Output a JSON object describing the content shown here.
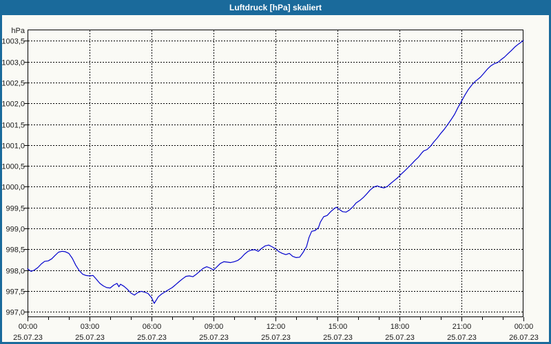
{
  "window": {
    "title": "Luftdruck [hPa] skaliert"
  },
  "colors": {
    "frame": "#1a6a9b",
    "title_text": "#ffffff",
    "content_bg": "#fafaf5",
    "grid": "#000000",
    "axis": "#000000",
    "label_text": "#1a1a1a",
    "line": "#0000cd"
  },
  "chart_data": {
    "type": "line",
    "title": "Luftdruck [hPa] skaliert",
    "ylabel": "hPa",
    "legend": "none",
    "grid": "dashed",
    "xlim_hours": [
      0,
      24
    ],
    "ylim": [
      996.87,
      1003.77
    ],
    "x_minor_tick_hours": 1,
    "x_major_ticks": [
      {
        "hour": 0,
        "time": "00:00",
        "date": "25.07.23"
      },
      {
        "hour": 3,
        "time": "03:00",
        "date": "25.07.23"
      },
      {
        "hour": 6,
        "time": "06:00",
        "date": "25.07.23"
      },
      {
        "hour": 9,
        "time": "09:00",
        "date": "25.07.23"
      },
      {
        "hour": 12,
        "time": "12:00",
        "date": "25.07.23"
      },
      {
        "hour": 15,
        "time": "15:00",
        "date": "25.07.23"
      },
      {
        "hour": 18,
        "time": "18:00",
        "date": "25.07.23"
      },
      {
        "hour": 21,
        "time": "21:00",
        "date": "25.07.23"
      },
      {
        "hour": 24,
        "time": "00:00",
        "date": "26.07.23"
      }
    ],
    "y_ticks": [
      {
        "value": 997.0,
        "label": "997,0"
      },
      {
        "value": 997.5,
        "label": "997,5"
      },
      {
        "value": 998.0,
        "label": "998,0"
      },
      {
        "value": 998.5,
        "label": "998,5"
      },
      {
        "value": 999.0,
        "label": "999,0"
      },
      {
        "value": 999.5,
        "label": "999,5"
      },
      {
        "value": 1000.0,
        "label": "1000,0"
      },
      {
        "value": 1000.5,
        "label": "1000,5"
      },
      {
        "value": 1001.0,
        "label": "1001,0"
      },
      {
        "value": 1001.5,
        "label": "1001,5"
      },
      {
        "value": 1002.0,
        "label": "1002,0"
      },
      {
        "value": 1002.5,
        "label": "1002,5"
      },
      {
        "value": 1003.0,
        "label": "1003,0"
      },
      {
        "value": 1003.5,
        "label": "1003,5"
      }
    ],
    "series": [
      {
        "name": "Luftdruck",
        "color": "#0000cd",
        "points_hour_hpa": [
          [
            0.0,
            998.03
          ],
          [
            0.17,
            997.97
          ],
          [
            0.33,
            998.0
          ],
          [
            0.5,
            998.06
          ],
          [
            0.67,
            998.15
          ],
          [
            0.83,
            998.21
          ],
          [
            1.0,
            998.22
          ],
          [
            1.17,
            998.27
          ],
          [
            1.33,
            998.35
          ],
          [
            1.5,
            998.43
          ],
          [
            1.67,
            998.45
          ],
          [
            1.83,
            998.44
          ],
          [
            2.0,
            998.4
          ],
          [
            2.17,
            998.28
          ],
          [
            2.33,
            998.12
          ],
          [
            2.5,
            997.99
          ],
          [
            2.67,
            997.9
          ],
          [
            2.83,
            997.87
          ],
          [
            3.0,
            997.86
          ],
          [
            3.17,
            997.87
          ],
          [
            3.33,
            997.78
          ],
          [
            3.5,
            997.68
          ],
          [
            3.67,
            997.62
          ],
          [
            3.83,
            997.58
          ],
          [
            4.0,
            997.57
          ],
          [
            4.17,
            997.64
          ],
          [
            4.33,
            997.68
          ],
          [
            4.42,
            997.6
          ],
          [
            4.5,
            997.66
          ],
          [
            4.67,
            997.61
          ],
          [
            4.83,
            997.54
          ],
          [
            5.0,
            997.45
          ],
          [
            5.17,
            997.4
          ],
          [
            5.33,
            997.46
          ],
          [
            5.5,
            997.49
          ],
          [
            5.67,
            997.47
          ],
          [
            5.83,
            997.44
          ],
          [
            6.0,
            997.34
          ],
          [
            6.13,
            997.2
          ],
          [
            6.33,
            997.36
          ],
          [
            6.5,
            997.43
          ],
          [
            6.67,
            997.48
          ],
          [
            6.83,
            997.53
          ],
          [
            7.0,
            997.58
          ],
          [
            7.17,
            997.65
          ],
          [
            7.33,
            997.72
          ],
          [
            7.5,
            997.79
          ],
          [
            7.67,
            997.85
          ],
          [
            7.83,
            997.86
          ],
          [
            8.0,
            997.84
          ],
          [
            8.17,
            997.9
          ],
          [
            8.33,
            997.97
          ],
          [
            8.5,
            998.04
          ],
          [
            8.67,
            998.08
          ],
          [
            8.83,
            998.05
          ],
          [
            9.0,
            998.0
          ],
          [
            9.17,
            998.08
          ],
          [
            9.33,
            998.16
          ],
          [
            9.5,
            998.2
          ],
          [
            9.67,
            998.19
          ],
          [
            9.83,
            998.18
          ],
          [
            10.0,
            998.2
          ],
          [
            10.17,
            998.23
          ],
          [
            10.33,
            998.29
          ],
          [
            10.5,
            998.38
          ],
          [
            10.67,
            998.45
          ],
          [
            10.83,
            998.48
          ],
          [
            11.0,
            998.49
          ],
          [
            11.17,
            998.45
          ],
          [
            11.33,
            998.52
          ],
          [
            11.5,
            998.58
          ],
          [
            11.67,
            998.6
          ],
          [
            11.83,
            998.56
          ],
          [
            12.0,
            998.51
          ],
          [
            12.17,
            998.44
          ],
          [
            12.33,
            998.4
          ],
          [
            12.5,
            998.37
          ],
          [
            12.67,
            998.4
          ],
          [
            12.83,
            998.33
          ],
          [
            13.0,
            998.3
          ],
          [
            13.17,
            998.31
          ],
          [
            13.33,
            998.42
          ],
          [
            13.5,
            998.56
          ],
          [
            13.62,
            998.78
          ],
          [
            13.75,
            998.93
          ],
          [
            13.92,
            998.95
          ],
          [
            14.08,
            999.02
          ],
          [
            14.17,
            999.15
          ],
          [
            14.33,
            999.28
          ],
          [
            14.5,
            999.31
          ],
          [
            14.67,
            999.4
          ],
          [
            14.83,
            999.47
          ],
          [
            14.95,
            999.51
          ],
          [
            15.08,
            999.46
          ],
          [
            15.25,
            999.4
          ],
          [
            15.42,
            999.39
          ],
          [
            15.58,
            999.44
          ],
          [
            15.75,
            999.52
          ],
          [
            15.9,
            999.61
          ],
          [
            16.08,
            999.67
          ],
          [
            16.25,
            999.74
          ],
          [
            16.42,
            999.83
          ],
          [
            16.58,
            999.92
          ],
          [
            16.75,
            999.99
          ],
          [
            16.92,
            1000.02
          ],
          [
            17.08,
            999.99
          ],
          [
            17.25,
            999.97
          ],
          [
            17.42,
            1000.01
          ],
          [
            17.58,
            1000.08
          ],
          [
            17.75,
            1000.15
          ],
          [
            17.92,
            1000.22
          ],
          [
            18.08,
            1000.3
          ],
          [
            18.25,
            1000.38
          ],
          [
            18.42,
            1000.46
          ],
          [
            18.58,
            1000.54
          ],
          [
            18.75,
            1000.63
          ],
          [
            18.92,
            1000.71
          ],
          [
            19.08,
            1000.81
          ],
          [
            19.17,
            1000.86
          ],
          [
            19.33,
            1000.89
          ],
          [
            19.5,
            1000.97
          ],
          [
            19.67,
            1001.08
          ],
          [
            19.83,
            1001.17
          ],
          [
            20.0,
            1001.28
          ],
          [
            20.17,
            1001.38
          ],
          [
            20.33,
            1001.49
          ],
          [
            20.5,
            1001.61
          ],
          [
            20.67,
            1001.74
          ],
          [
            20.83,
            1001.9
          ],
          [
            21.0,
            1002.05
          ],
          [
            21.17,
            1002.2
          ],
          [
            21.33,
            1002.33
          ],
          [
            21.5,
            1002.44
          ],
          [
            21.67,
            1002.53
          ],
          [
            21.75,
            1002.56
          ],
          [
            21.92,
            1002.63
          ],
          [
            22.08,
            1002.72
          ],
          [
            22.25,
            1002.82
          ],
          [
            22.42,
            1002.9
          ],
          [
            22.58,
            1002.95
          ],
          [
            22.75,
            1002.98
          ],
          [
            22.92,
            1003.05
          ],
          [
            23.08,
            1003.11
          ],
          [
            23.25,
            1003.19
          ],
          [
            23.42,
            1003.27
          ],
          [
            23.58,
            1003.35
          ],
          [
            23.75,
            1003.42
          ],
          [
            23.92,
            1003.48
          ],
          [
            24.0,
            1003.51
          ]
        ]
      }
    ]
  }
}
